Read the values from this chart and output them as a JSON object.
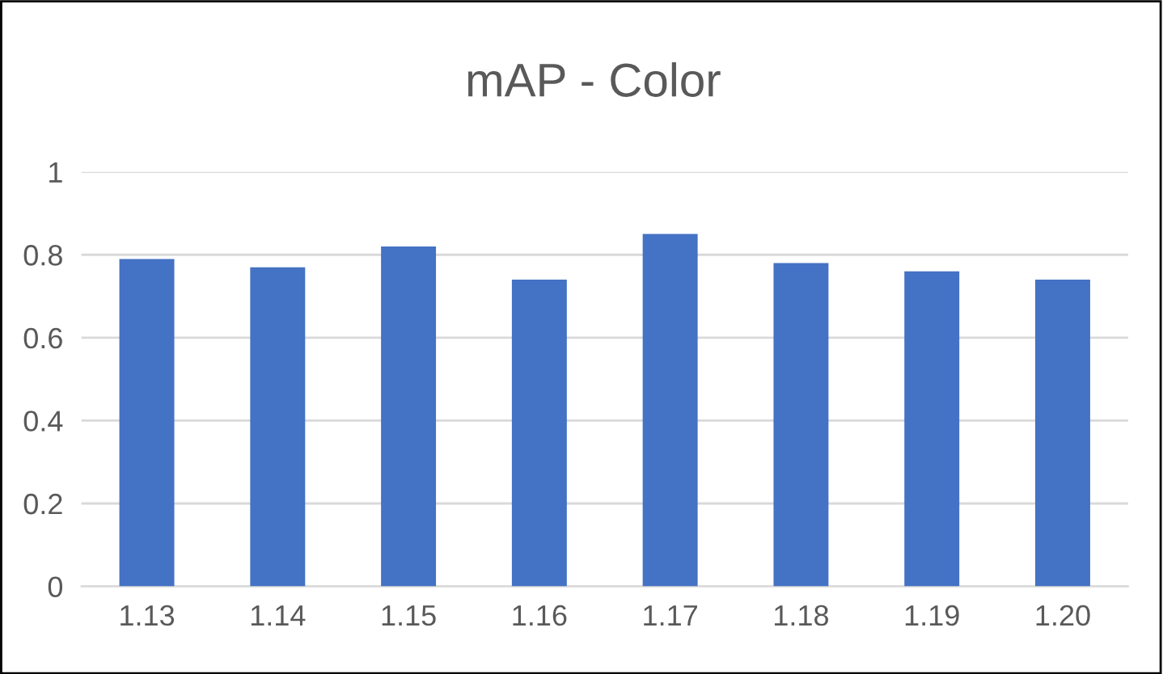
{
  "chart_data": {
    "type": "bar",
    "title": "mAP - Color",
    "categories": [
      "1.13",
      "1.14",
      "1.15",
      "1.16",
      "1.17",
      "1.18",
      "1.19",
      "1.20"
    ],
    "values": [
      0.79,
      0.77,
      0.82,
      0.74,
      0.85,
      0.78,
      0.76,
      0.74
    ],
    "color": "#4472c4",
    "ylim": [
      0,
      1
    ],
    "yticks": [
      0,
      0.2,
      0.4,
      0.6,
      0.8,
      1
    ],
    "grid": "y"
  }
}
